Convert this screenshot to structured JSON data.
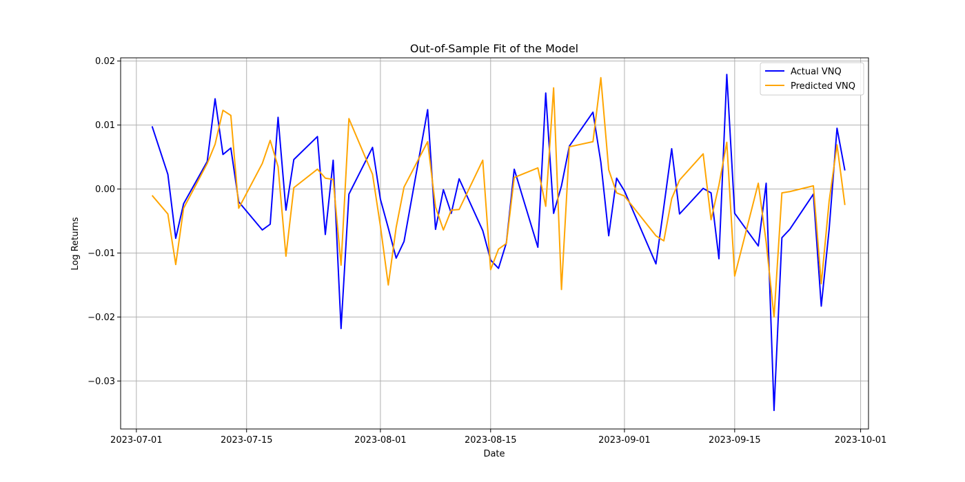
{
  "chart_data": {
    "type": "line",
    "title": "Out-of-Sample Fit of the Model",
    "xlabel": "Date",
    "ylabel": "Log Returns",
    "xlim": [
      "2023-06-29",
      "2023-10-02"
    ],
    "ylim": [
      -0.0375,
      0.0205
    ],
    "grid": true,
    "legend_position": "top-right",
    "x_ticks": [
      "2023-07-01",
      "2023-07-15",
      "2023-08-01",
      "2023-08-15",
      "2023-09-01",
      "2023-09-15",
      "2023-10-01"
    ],
    "x_tick_labels": [
      "2023-07-01",
      "2023-07-15",
      "2023-08-01",
      "2023-08-15",
      "2023-09-01",
      "2023-09-15",
      "2023-10-01"
    ],
    "y_ticks": [
      0.02,
      0.01,
      0.0,
      -0.01,
      -0.02,
      -0.03
    ],
    "y_tick_labels": [
      "0.02",
      "0.01",
      "0.00",
      "−0.01",
      "−0.02",
      "−0.03"
    ],
    "x": [
      "2023-07-03",
      "2023-07-05",
      "2023-07-06",
      "2023-07-07",
      "2023-07-10",
      "2023-07-11",
      "2023-07-12",
      "2023-07-13",
      "2023-07-14",
      "2023-07-17",
      "2023-07-18",
      "2023-07-19",
      "2023-07-20",
      "2023-07-21",
      "2023-07-24",
      "2023-07-25",
      "2023-07-26",
      "2023-07-27",
      "2023-07-28",
      "2023-07-31",
      "2023-08-01",
      "2023-08-02",
      "2023-08-03",
      "2023-08-04",
      "2023-08-07",
      "2023-08-08",
      "2023-08-09",
      "2023-08-10",
      "2023-08-11",
      "2023-08-14",
      "2023-08-15",
      "2023-08-16",
      "2023-08-17",
      "2023-08-18",
      "2023-08-21",
      "2023-08-22",
      "2023-08-23",
      "2023-08-24",
      "2023-08-25",
      "2023-08-28",
      "2023-08-29",
      "2023-08-30",
      "2023-08-31",
      "2023-09-01",
      "2023-09-05",
      "2023-09-06",
      "2023-09-07",
      "2023-09-08",
      "2023-09-11",
      "2023-09-12",
      "2023-09-13",
      "2023-09-14",
      "2023-09-15",
      "2023-09-18",
      "2023-09-19",
      "2023-09-20",
      "2023-09-21",
      "2023-09-22",
      "2023-09-25",
      "2023-09-26",
      "2023-09-27",
      "2023-09-28",
      "2023-09-29"
    ],
    "series": [
      {
        "name": "Actual VNQ",
        "color": "#0000ff",
        "values": [
          0.0098,
          0.0023,
          -0.0077,
          -0.0023,
          0.0043,
          0.0141,
          0.0054,
          0.0064,
          -0.002,
          -0.0064,
          -0.0055,
          0.0112,
          -0.0033,
          0.0046,
          0.0082,
          -0.0071,
          0.0045,
          -0.0218,
          -0.0008,
          0.0065,
          -0.0016,
          -0.0061,
          -0.0108,
          -0.0082,
          0.0124,
          -0.0063,
          -0.0001,
          -0.0038,
          0.0016,
          -0.0065,
          -0.0111,
          -0.0124,
          -0.0084,
          0.0031,
          -0.0091,
          0.015,
          -0.0038,
          0.0005,
          0.0067,
          0.012,
          0.0042,
          -0.0073,
          0.0017,
          -0.0003,
          -0.0117,
          -0.0028,
          0.0063,
          -0.0039,
          0.0001,
          -0.0006,
          -0.0109,
          0.0179,
          -0.0038,
          -0.0089,
          0.0009,
          -0.0346,
          -0.0076,
          -0.0063,
          -0.0008,
          -0.0183,
          -0.0063,
          0.0095,
          0.0029
        ]
      },
      {
        "name": "Predicted VNQ",
        "color": "#ffa500",
        "values": [
          -0.001,
          -0.0039,
          -0.0118,
          -0.003,
          0.004,
          0.007,
          0.0123,
          0.0115,
          -0.003,
          0.004,
          0.0076,
          0.0035,
          -0.0105,
          0.0002,
          0.0031,
          0.0017,
          0.0015,
          -0.0119,
          0.011,
          0.0023,
          -0.0058,
          -0.015,
          -0.006,
          0.0003,
          0.0074,
          -0.0028,
          -0.0064,
          -0.0033,
          -0.0032,
          0.0045,
          -0.0126,
          -0.0094,
          -0.0085,
          0.0018,
          0.0033,
          -0.0027,
          0.0158,
          -0.0157,
          0.0066,
          0.0074,
          0.0174,
          0.003,
          -0.0006,
          -0.0011,
          -0.0073,
          -0.0081,
          -0.0015,
          0.0014,
          0.0055,
          -0.0048,
          0.0006,
          0.0073,
          -0.0136,
          0.0009,
          -0.0083,
          -0.02,
          -0.0006,
          -0.0004,
          0.0005,
          -0.0148,
          -0.0019,
          0.0069,
          -0.0025
        ]
      }
    ]
  }
}
